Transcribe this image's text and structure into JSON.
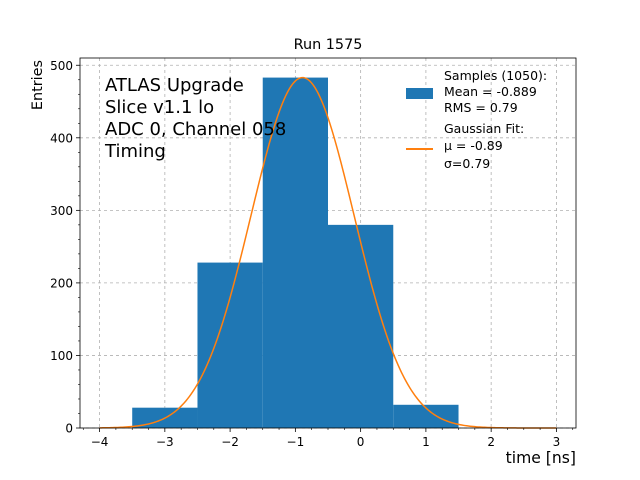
{
  "chart_data": {
    "type": "bar",
    "title": "Run 1575",
    "xlabel": "time [ns]",
    "ylabel": "Entries",
    "xlim": [
      -4.3,
      3.3
    ],
    "ylim": [
      0,
      510
    ],
    "xticks": [
      -4,
      -3,
      -2,
      -1,
      0,
      1,
      2,
      3
    ],
    "yticks": [
      0,
      100,
      200,
      300,
      400,
      500
    ],
    "grid": true,
    "annotation": [
      "ATLAS Upgrade",
      "Slice v1.1 lo",
      "ADC 0, Channel 058",
      "Timing"
    ],
    "histogram": {
      "name": "Samples (1050):",
      "bins": [
        {
          "x0": -3.5,
          "x1": -2.5,
          "value": 28
        },
        {
          "x0": -2.5,
          "x1": -1.5,
          "value": 228
        },
        {
          "x0": -1.5,
          "x1": -0.5,
          "value": 483
        },
        {
          "x0": -0.5,
          "x1": 0.5,
          "value": 280
        },
        {
          "x0": 0.5,
          "x1": 1.5,
          "value": 32
        }
      ],
      "color": "#1f77b4"
    },
    "fit": {
      "name": "Gaussian Fit:",
      "mu": -0.89,
      "sigma": 0.79,
      "amplitude": 483,
      "x_range": [
        -4.0,
        3.0
      ],
      "color": "#ff7f0e"
    },
    "legend": {
      "placement": "top-right",
      "entries": [
        {
          "lines": [
            "Samples (1050):",
            " Mean = -0.889",
            " RMS = 0.79"
          ]
        },
        {
          "lines": [
            "Gaussian Fit:",
            " μ = -0.89",
            " σ=0.79"
          ]
        }
      ]
    }
  }
}
